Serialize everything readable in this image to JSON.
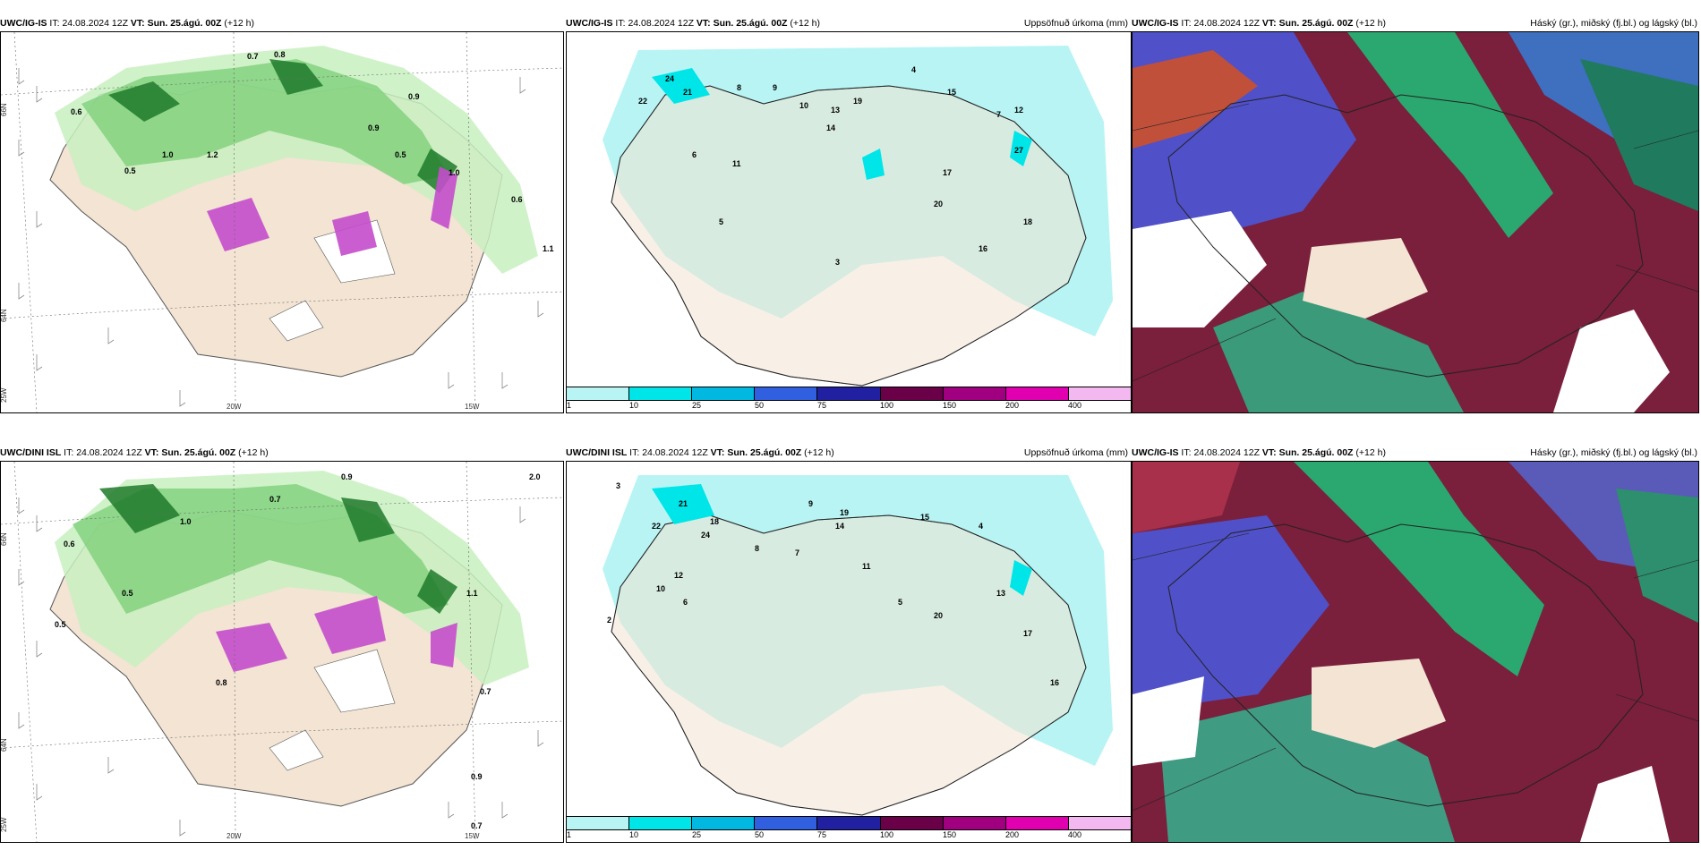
{
  "panels": {
    "p1": {
      "model": "UWC/IG-IS",
      "it_label": "IT:",
      "it": "24.08.2024 12Z",
      "vt_label": "VT:",
      "vt": "Sun. 25.ágú. 00Z",
      "lead": "(+12 h)",
      "right_title": ""
    },
    "p2": {
      "model": "UWC/IG-IS",
      "it_label": "IT:",
      "it": "24.08.2024 12Z",
      "vt_label": "VT:",
      "vt": "Sun. 25.ágú. 00Z",
      "lead": "(+12 h)",
      "right_title": "Uppsöfnuð úrkoma (mm)"
    },
    "p3": {
      "model": "UWC/IG-IS",
      "it_label": "IT:",
      "it": "24.08.2024 12Z",
      "vt_label": "VT:",
      "vt": "Sun. 25.ágú. 00Z",
      "lead": "(+12 h)",
      "right_title": "Háský (gr.), miðský (fj.bl.) og lágský (bl.)"
    },
    "p4": {
      "model": "UWC/DINI ISL",
      "it_label": "IT:",
      "it": "24.08.2024 12Z",
      "vt_label": "VT:",
      "vt": "Sun. 25.ágú. 00Z",
      "lead": "(+12 h)",
      "right_title": ""
    },
    "p5": {
      "model": "UWC/DINI ISL",
      "it_label": "IT:",
      "it": "24.08.2024 12Z",
      "vt_label": "VT:",
      "vt": "Sun. 25.ágú. 00Z",
      "lead": "(+12 h)",
      "right_title": "Uppsöfnuð úrkoma (mm)"
    },
    "p6": {
      "model": "UWC/IG-IS",
      "it_label": "IT:",
      "it": "24.08.2024 12Z",
      "vt_label": "VT:",
      "vt": "Sun. 25.ágú. 00Z",
      "lead": "(+12 h)",
      "right_title": "Hásky (gr.), miðský (fj.bl.) og lágský (bl.)"
    }
  },
  "axes": {
    "lat_66": "66N",
    "lat_64": "64N",
    "lon_25": "25W",
    "lon_20": "20W",
    "lon_15": "15W"
  },
  "colorbar": {
    "colors": [
      "#b8f4f4",
      "#00e5e8",
      "#00b8e0",
      "#3060e0",
      "#2020a0",
      "#6a0048",
      "#a00080",
      "#e000b0",
      "#f4b8f0"
    ],
    "labels": [
      "1",
      "10",
      "25",
      "50",
      "75",
      "100",
      "150",
      "200",
      "400"
    ]
  },
  "precip_values_top": [
    "24",
    "22",
    "21",
    "19",
    "15",
    "13",
    "8",
    "9",
    "10",
    "11",
    "12",
    "4",
    "6",
    "3",
    "5",
    "17",
    "20",
    "16",
    "27",
    "7",
    "18",
    "14"
  ],
  "precip_values_bottom": [
    "21",
    "22",
    "24",
    "19",
    "18",
    "15",
    "14",
    "12",
    "10",
    "9",
    "8",
    "7",
    "13",
    "20",
    "17",
    "6",
    "3",
    "4",
    "5",
    "2",
    "11",
    "16"
  ],
  "wind_values_top": [
    "0.7",
    "0.8",
    "0.6",
    "0.5",
    "0.9",
    "1.0",
    "1.2",
    "0.9",
    "1.1",
    "0.6",
    "1.0",
    "0.5"
  ],
  "wind_values_bottom": [
    "0.6",
    "0.9",
    "0.7",
    "0.5",
    "0.8",
    "1.0",
    "1.1",
    "2.0",
    "0.9",
    "0.7",
    "0.7",
    "0.5"
  ],
  "colors": {
    "land": "#f3e4d3",
    "sea_precip": "#b8f4f4",
    "green_light": "#c8f0c0",
    "green_mid": "#7ed07a",
    "green_dark": "#1e7a2a",
    "magenta": "#c44ccc",
    "cloud_high": "#8b1a3a",
    "cloud_mid": "#5050c8",
    "cloud_low": "#2aa870"
  }
}
